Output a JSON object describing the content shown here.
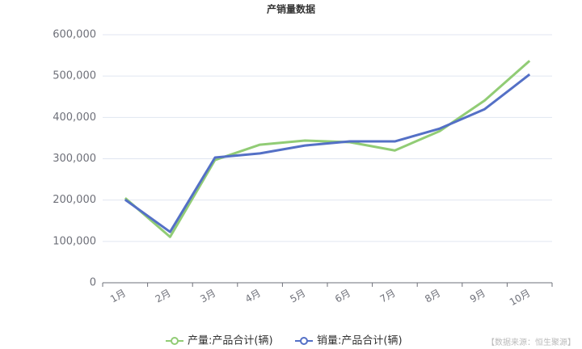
{
  "chart_data": {
    "type": "line",
    "title": "产销量数据",
    "categories": [
      "1月",
      "2月",
      "3月",
      "4月",
      "5月",
      "6月",
      "7月",
      "8月",
      "9月",
      "10月"
    ],
    "series": [
      {
        "name": "产量:产品合计(辆)",
        "color": "#91cc75",
        "values": [
          205000,
          111000,
          297000,
          334000,
          344000,
          340000,
          320000,
          367000,
          441000,
          537000
        ]
      },
      {
        "name": "销量:产品合计(辆)",
        "color": "#5470c6",
        "values": [
          201000,
          123000,
          303000,
          313000,
          332000,
          342000,
          342000,
          373000,
          420000,
          504000
        ]
      }
    ],
    "ylim": [
      0,
      600000
    ],
    "yticks": [
      0,
      {
        "value": 100000,
        "label": "100,000"
      },
      {
        "value": 200000,
        "label": "200,000"
      },
      {
        "value": 300000,
        "label": "300,000"
      },
      {
        "value": 400000,
        "label": "400,000"
      },
      {
        "value": 500000,
        "label": "500,000"
      },
      {
        "value": 600000,
        "label": "600,000"
      }
    ],
    "grid": true,
    "legend": "bottom",
    "source": "【数据来源：恒生聚源】"
  }
}
